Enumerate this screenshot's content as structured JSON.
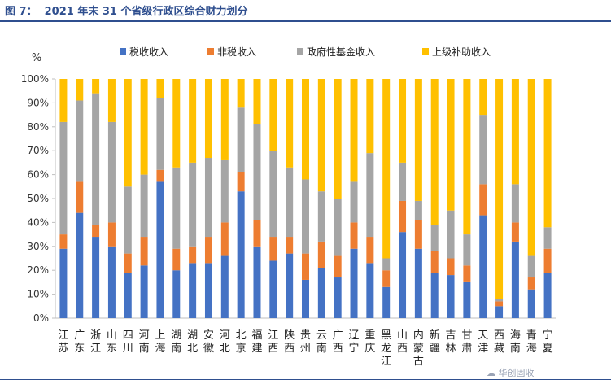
{
  "figure": {
    "title": "图 7：  2021 年末 31 个省级行政区综合财力划分",
    "watermark": "☁ 华创固收"
  },
  "chart_data": {
    "type": "bar",
    "stacked": true,
    "ylabel": "%",
    "ylim": [
      0,
      100
    ],
    "yticks": [
      "0%",
      "10%",
      "20%",
      "30%",
      "40%",
      "50%",
      "60%",
      "70%",
      "80%",
      "90%",
      "100%"
    ],
    "grid": false,
    "legend_position": "top",
    "categories": [
      "江苏",
      "广东",
      "浙江",
      "山东",
      "四川",
      "河南",
      "上海",
      "湖南",
      "湖北",
      "安徽",
      "河北",
      "北京",
      "福建",
      "江西",
      "陕西",
      "贵州",
      "云南",
      "广西",
      "辽宁",
      "重庆",
      "黑龙江",
      "山西",
      "内蒙古",
      "新疆",
      "吉林",
      "甘肃",
      "天津",
      "西藏",
      "海南",
      "青海",
      "宁夏"
    ],
    "series": [
      {
        "name": "税收收入",
        "color": "#4472c4",
        "values": [
          29,
          44,
          34,
          30,
          19,
          22,
          57,
          20,
          23,
          23,
          26,
          53,
          30,
          24,
          27,
          16,
          21,
          17,
          29,
          23,
          13,
          36,
          29,
          19,
          18,
          15,
          43,
          5,
          32,
          12,
          19
        ]
      },
      {
        "name": "非税收入",
        "color": "#ed7d31",
        "values": [
          6,
          13,
          5,
          10,
          8,
          12,
          5,
          9,
          7,
          11,
          14,
          8,
          11,
          10,
          7,
          11,
          11,
          9,
          11,
          11,
          7,
          13,
          12,
          9,
          7,
          7,
          13,
          2,
          8,
          5,
          10
        ]
      },
      {
        "name": "政府性基金收入",
        "color": "#a5a5a5",
        "values": [
          47,
          34,
          55,
          42,
          28,
          26,
          30,
          34,
          35,
          33,
          26,
          27,
          40,
          36,
          29,
          31,
          21,
          24,
          17,
          35,
          5,
          16,
          8,
          11,
          20,
          13,
          29,
          1,
          16,
          9,
          9
        ]
      },
      {
        "name": "上级补助收入",
        "color": "#ffc000",
        "values": [
          18,
          9,
          6,
          18,
          45,
          40,
          8,
          37,
          35,
          33,
          34,
          12,
          19,
          30,
          37,
          42,
          47,
          50,
          43,
          31,
          75,
          35,
          51,
          61,
          55,
          65,
          15,
          92,
          44,
          74,
          62
        ]
      }
    ]
  }
}
